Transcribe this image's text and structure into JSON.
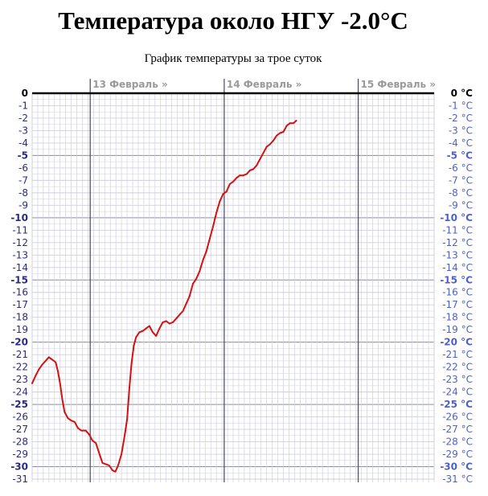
{
  "page": {
    "title": "Температура около НГУ -2.0°C",
    "subtitle": "График температуры за трое суток"
  },
  "colors": {
    "line": "#d41010",
    "grid_minor": "#cfcfe0",
    "grid_major": "#8a8aa0",
    "day_line": "#555566",
    "left_label_odd": "#2a2a80",
    "left_label_even": "#2a2a80",
    "right_label": "#4f5fc9",
    "zero_axis": "#000000",
    "day_label": "#9a9a9a"
  },
  "chart_data": {
    "type": "line",
    "title": "График температуры за трое суток",
    "xlabel": "",
    "ylabel": "",
    "ylim": [
      -31,
      0
    ],
    "x_unit": "hours from left edge",
    "xlim": [
      0,
      72
    ],
    "left_ticks": [
      "0",
      "-1",
      "-2",
      "-3",
      "-4",
      "-5",
      "-6",
      "-7",
      "-8",
      "-9",
      "-10",
      "-11",
      "-12",
      "-13",
      "-14",
      "-15",
      "-16",
      "-17",
      "-18",
      "-19",
      "-20",
      "-21",
      "-22",
      "-23",
      "-24",
      "-25",
      "-26",
      "-27",
      "-28",
      "-29",
      "-30",
      "-31"
    ],
    "right_ticks": [
      "0 °C",
      "-1 °C",
      "-2 °C",
      "-3 °C",
      "-4 °C",
      "-5 °C",
      "-6 °C",
      "-7 °C",
      "-8 °C",
      "-9 °C",
      "-10 °C",
      "-11 °C",
      "-12 °C",
      "-13 °C",
      "-14 °C",
      "-15 °C",
      "-16 °C",
      "-17 °C",
      "-18 °C",
      "-19 °C",
      "-20 °C",
      "-21 °C",
      "-22 °C",
      "-23 °C",
      "-24 °C",
      "-25 °C",
      "-26 °C",
      "-27 °C",
      "-28 °C",
      "-29 °C",
      "-30 °C",
      "-31 °C"
    ],
    "day_labels": [
      {
        "label": "13 Февраль »",
        "x": 10.4
      },
      {
        "label": "14 Февраль »",
        "x": 34.4
      },
      {
        "label": "15 Февраль »",
        "x": 58.4
      }
    ],
    "grid": true,
    "series": [
      {
        "values": [
          [
            0.0,
            -23.3
          ],
          [
            0.6,
            -22.7
          ],
          [
            1.2,
            -22.2
          ],
          [
            1.8,
            -21.8
          ],
          [
            2.4,
            -21.5
          ],
          [
            3.0,
            -21.2
          ],
          [
            3.6,
            -21.4
          ],
          [
            4.2,
            -21.6
          ],
          [
            4.6,
            -22.3
          ],
          [
            5.0,
            -23.3
          ],
          [
            5.4,
            -24.6
          ],
          [
            5.8,
            -25.6
          ],
          [
            6.4,
            -26.1
          ],
          [
            7.0,
            -26.3
          ],
          [
            7.6,
            -26.4
          ],
          [
            8.2,
            -26.9
          ],
          [
            8.8,
            -27.1
          ],
          [
            9.6,
            -27.1
          ],
          [
            10.2,
            -27.4
          ],
          [
            10.8,
            -27.9
          ],
          [
            11.4,
            -28.1
          ],
          [
            12.0,
            -28.9
          ],
          [
            12.6,
            -29.7
          ],
          [
            13.2,
            -29.8
          ],
          [
            13.8,
            -29.9
          ],
          [
            14.4,
            -30.3
          ],
          [
            14.9,
            -30.4
          ],
          [
            15.4,
            -29.9
          ],
          [
            16.0,
            -29.0
          ],
          [
            16.6,
            -27.4
          ],
          [
            17.0,
            -26.2
          ],
          [
            17.4,
            -23.8
          ],
          [
            17.8,
            -21.7
          ],
          [
            18.2,
            -20.3
          ],
          [
            18.6,
            -19.6
          ],
          [
            19.2,
            -19.2
          ],
          [
            19.8,
            -19.1
          ],
          [
            20.4,
            -18.9
          ],
          [
            21.0,
            -18.7
          ],
          [
            21.6,
            -19.2
          ],
          [
            22.2,
            -19.5
          ],
          [
            22.8,
            -18.9
          ],
          [
            23.4,
            -18.4
          ],
          [
            24.0,
            -18.3
          ],
          [
            24.6,
            -18.5
          ],
          [
            25.2,
            -18.4
          ],
          [
            25.8,
            -18.1
          ],
          [
            26.4,
            -17.8
          ],
          [
            27.0,
            -17.5
          ],
          [
            27.6,
            -16.9
          ],
          [
            28.2,
            -16.3
          ],
          [
            28.8,
            -15.3
          ],
          [
            29.4,
            -14.9
          ],
          [
            30.0,
            -14.3
          ],
          [
            30.6,
            -13.4
          ],
          [
            31.2,
            -12.7
          ],
          [
            31.8,
            -11.7
          ],
          [
            32.4,
            -10.7
          ],
          [
            33.0,
            -9.6
          ],
          [
            33.6,
            -8.7
          ],
          [
            34.2,
            -8.1
          ],
          [
            34.8,
            -7.9
          ],
          [
            35.4,
            -7.3
          ],
          [
            36.0,
            -7.1
          ],
          [
            36.6,
            -6.8
          ],
          [
            37.2,
            -6.6
          ],
          [
            37.8,
            -6.6
          ],
          [
            38.4,
            -6.5
          ],
          [
            39.0,
            -6.2
          ],
          [
            39.6,
            -6.1
          ],
          [
            40.2,
            -5.8
          ],
          [
            40.8,
            -5.3
          ],
          [
            41.4,
            -4.8
          ],
          [
            42.0,
            -4.3
          ],
          [
            42.6,
            -4.1
          ],
          [
            43.2,
            -3.8
          ],
          [
            43.8,
            -3.4
          ],
          [
            44.4,
            -3.2
          ],
          [
            45.0,
            -3.1
          ],
          [
            45.6,
            -2.6
          ],
          [
            46.2,
            -2.4
          ],
          [
            46.8,
            -2.4
          ],
          [
            47.3,
            -2.2
          ]
        ]
      }
    ]
  }
}
